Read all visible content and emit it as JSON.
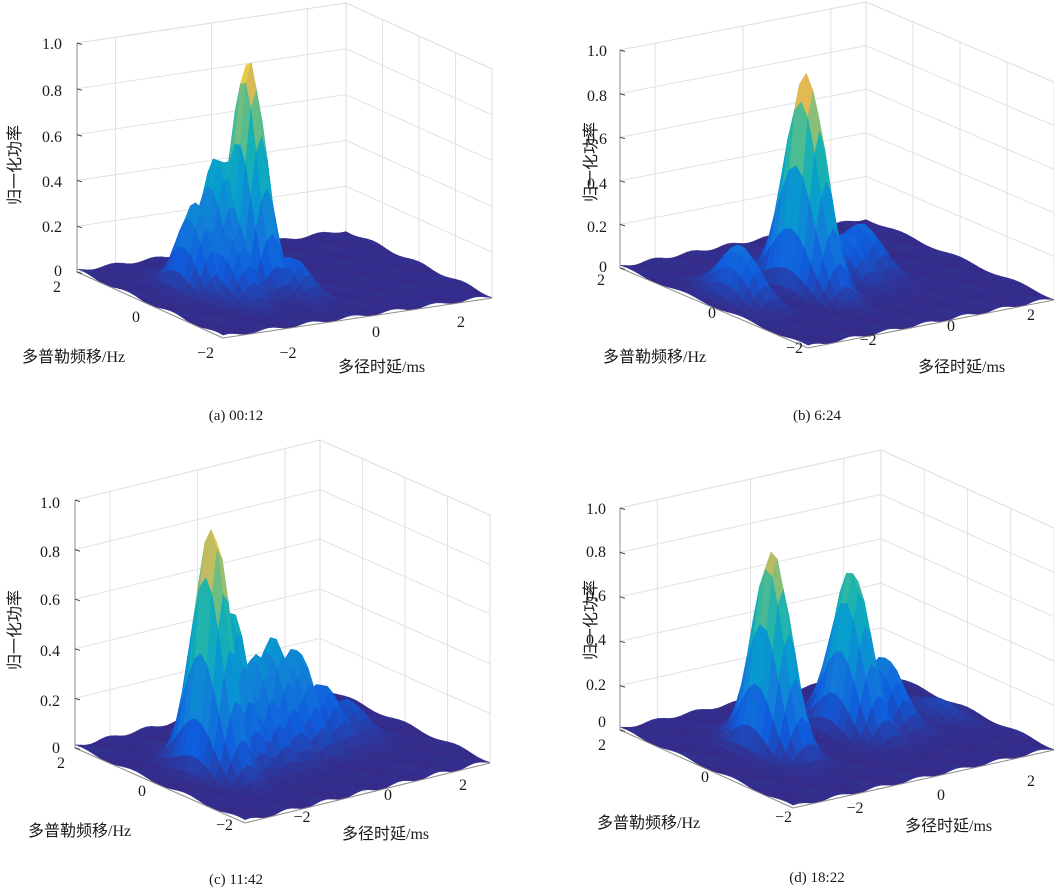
{
  "chart_data": [
    {
      "type": "surface",
      "caption": "(a) 00:12",
      "zlabel": "归一化功率",
      "xlabel": "多径时延/ms",
      "ylabel": "多普勒频移/Hz",
      "zticks": [
        "0",
        "0.2",
        "0.4",
        "0.6",
        "0.8",
        "1.0"
      ],
      "xticks": [
        "−2",
        "0",
        "2"
      ],
      "yticks": [
        "−2",
        "0",
        "2"
      ],
      "zlim": [
        0,
        1
      ],
      "xlim": [
        -2.8,
        2.8
      ],
      "ylim": [
        -2,
        2
      ],
      "peaks": [
        {
          "delay": -0.6,
          "doppler": 0.2,
          "height": 0.98
        },
        {
          "delay": -1.0,
          "doppler": 0.5,
          "height": 0.55
        },
        {
          "delay": -1.6,
          "doppler": 0.3,
          "height": 0.38
        },
        {
          "delay": -1.3,
          "doppler": -0.3,
          "height": 0.3
        },
        {
          "delay": -0.2,
          "doppler": -0.5,
          "height": 0.15
        }
      ]
    },
    {
      "type": "surface",
      "caption": "(b) 6:24",
      "zlabel": "归一化功率",
      "xlabel": "多径时延/ms",
      "ylabel": "多普勒频移/Hz",
      "zticks": [
        "0",
        "0.2",
        "0.4",
        "0.6",
        "0.8",
        "1.0"
      ],
      "xticks": [
        "−2",
        "0",
        "2"
      ],
      "yticks": [
        "−2",
        "0",
        "2"
      ],
      "zlim": [
        0,
        1
      ],
      "xlim": [
        -2.8,
        2.8
      ],
      "ylim": [
        -2,
        2
      ],
      "peaks": [
        {
          "delay": -0.7,
          "doppler": 0.0,
          "height": 0.98
        },
        {
          "delay": -2.1,
          "doppler": 0.1,
          "height": 0.25
        },
        {
          "delay": 0.3,
          "doppler": 0.1,
          "height": 0.2
        },
        {
          "delay": 0.9,
          "doppler": 0.3,
          "height": 0.2
        },
        {
          "delay": -0.2,
          "doppler": 0.6,
          "height": 0.18
        }
      ]
    },
    {
      "type": "surface",
      "caption": "(c) 11:42",
      "zlabel": "归一化功率",
      "xlabel": "多径时延/ms",
      "ylabel": "多普勒频移/Hz",
      "zticks": [
        "0",
        "0.2",
        "0.4",
        "0.6",
        "0.8",
        "1.0"
      ],
      "xticks": [
        "−2",
        "0",
        "2"
      ],
      "yticks": [
        "−2",
        "0",
        "2"
      ],
      "zlim": [
        0,
        1
      ],
      "xlim": [
        -2.8,
        2.8
      ],
      "ylim": [
        -2,
        2
      ],
      "peaks": [
        {
          "delay": -1.6,
          "doppler": 0.0,
          "height": 0.98
        },
        {
          "delay": -1.0,
          "doppler": 0.2,
          "height": 0.62
        },
        {
          "delay": -0.5,
          "doppler": 0.1,
          "height": 0.42
        },
        {
          "delay": 0.0,
          "doppler": 0.2,
          "height": 0.45
        },
        {
          "delay": 0.5,
          "doppler": 0.2,
          "height": 0.4
        },
        {
          "delay": 1.1,
          "doppler": 0.2,
          "height": 0.22
        },
        {
          "delay": 1.7,
          "doppler": 0.2,
          "height": 0.12
        }
      ]
    },
    {
      "type": "surface",
      "caption": "(d)  18:22",
      "zlabel": "归一化功率",
      "xlabel": "多径时延/ms",
      "ylabel": "多普勒频移/Hz",
      "zticks": [
        "0",
        "0.2",
        "0.4",
        "0.6",
        "0.8",
        "1.0"
      ],
      "xticks": [
        "−2",
        "0",
        "2"
      ],
      "yticks": [
        "−2",
        "0",
        "2"
      ],
      "zlim": [
        0,
        1
      ],
      "xlim": [
        -2.8,
        2.8
      ],
      "ylim": [
        -2,
        2
      ],
      "peaks": [
        {
          "delay": -1.3,
          "doppler": 0.1,
          "height": 0.9
        },
        {
          "delay": 0.5,
          "doppler": 0.2,
          "height": 0.73
        },
        {
          "delay": 1.2,
          "doppler": 0.2,
          "height": 0.3
        },
        {
          "delay": 2.2,
          "doppler": 0.0,
          "height": 0.08
        }
      ]
    }
  ]
}
